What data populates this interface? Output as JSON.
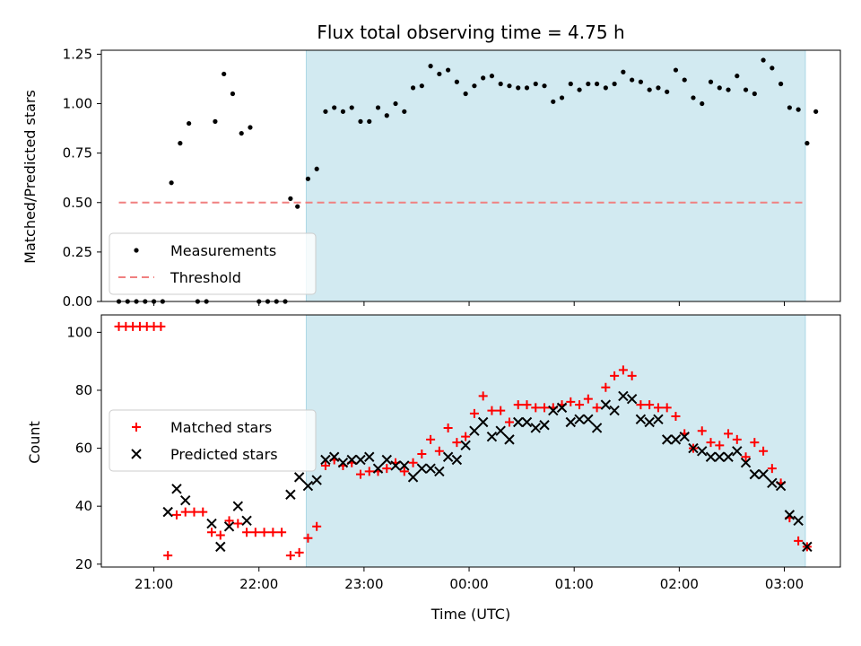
{
  "chart_data": [
    {
      "type": "scatter",
      "title": "Flux total observing time = 4.75 h",
      "ylabel": "Matched/Predicted stars",
      "xlabel": "",
      "x_unit": "hours (UTC)",
      "xlim": [
        "20:30",
        "03:32"
      ],
      "ylim": [
        0,
        1.27
      ],
      "yticks": [
        "0.00",
        "0.25",
        "0.50",
        "0.75",
        "1.00",
        "1.25"
      ],
      "xticks": [
        "21:00",
        "22:00",
        "23:00",
        "00:00",
        "01:00",
        "02:00",
        "03:00"
      ],
      "shaded_interval": [
        "22:27",
        "03:12"
      ],
      "legend_position": "lower-left",
      "series": [
        {
          "name": "Measurements",
          "marker": "dot",
          "color": "#000000",
          "points": [
            [
              "20:40",
              0.0
            ],
            [
              "20:45",
              0.0
            ],
            [
              "20:50",
              0.0
            ],
            [
              "20:55",
              0.0
            ],
            [
              "21:00",
              0.0
            ],
            [
              "21:05",
              0.0
            ],
            [
              "21:10",
              0.6
            ],
            [
              "21:15",
              0.8
            ],
            [
              "21:20",
              0.9
            ],
            [
              "21:25",
              0.0
            ],
            [
              "21:30",
              0.0
            ],
            [
              "21:35",
              0.91
            ],
            [
              "21:40",
              1.15
            ],
            [
              "21:45",
              1.05
            ],
            [
              "21:50",
              0.85
            ],
            [
              "21:55",
              0.88
            ],
            [
              "22:00",
              0.0
            ],
            [
              "22:05",
              0.0
            ],
            [
              "22:10",
              0.0
            ],
            [
              "22:15",
              0.0
            ],
            [
              "22:18",
              0.52
            ],
            [
              "22:22",
              0.48
            ],
            [
              "22:28",
              0.62
            ],
            [
              "22:33",
              0.67
            ],
            [
              "22:38",
              0.96
            ],
            [
              "22:43",
              0.98
            ],
            [
              "22:48",
              0.96
            ],
            [
              "22:53",
              0.98
            ],
            [
              "22:58",
              0.91
            ],
            [
              "23:03",
              0.91
            ],
            [
              "23:08",
              0.98
            ],
            [
              "23:13",
              0.94
            ],
            [
              "23:18",
              1.0
            ],
            [
              "23:23",
              0.96
            ],
            [
              "23:28",
              1.08
            ],
            [
              "23:33",
              1.09
            ],
            [
              "23:38",
              1.19
            ],
            [
              "23:43",
              1.15
            ],
            [
              "23:48",
              1.17
            ],
            [
              "23:53",
              1.11
            ],
            [
              "23:58",
              1.05
            ],
            [
              "00:03",
              1.09
            ],
            [
              "00:08",
              1.13
            ],
            [
              "00:13",
              1.14
            ],
            [
              "00:18",
              1.1
            ],
            [
              "00:23",
              1.09
            ],
            [
              "00:28",
              1.08
            ],
            [
              "00:33",
              1.08
            ],
            [
              "00:38",
              1.1
            ],
            [
              "00:43",
              1.09
            ],
            [
              "00:48",
              1.01
            ],
            [
              "00:53",
              1.03
            ],
            [
              "00:58",
              1.1
            ],
            [
              "01:03",
              1.07
            ],
            [
              "01:08",
              1.1
            ],
            [
              "01:13",
              1.1
            ],
            [
              "01:18",
              1.08
            ],
            [
              "01:23",
              1.1
            ],
            [
              "01:28",
              1.16
            ],
            [
              "01:33",
              1.12
            ],
            [
              "01:38",
              1.11
            ],
            [
              "01:43",
              1.07
            ],
            [
              "01:48",
              1.08
            ],
            [
              "01:53",
              1.06
            ],
            [
              "01:58",
              1.17
            ],
            [
              "02:03",
              1.12
            ],
            [
              "02:08",
              1.03
            ],
            [
              "02:13",
              1.0
            ],
            [
              "02:18",
              1.11
            ],
            [
              "02:23",
              1.08
            ],
            [
              "02:28",
              1.07
            ],
            [
              "02:33",
              1.14
            ],
            [
              "02:38",
              1.07
            ],
            [
              "02:43",
              1.05
            ],
            [
              "02:48",
              1.22
            ],
            [
              "02:53",
              1.18
            ],
            [
              "02:58",
              1.1
            ],
            [
              "03:03",
              0.98
            ],
            [
              "03:08",
              0.97
            ],
            [
              "03:13",
              0.8
            ],
            [
              "03:18",
              0.96
            ]
          ]
        },
        {
          "name": "Threshold",
          "marker": "dashed-line",
          "color": "#f08080",
          "points": [
            [
              "20:40",
              0.5
            ],
            [
              "03:12",
              0.5
            ]
          ]
        }
      ]
    },
    {
      "type": "scatter",
      "title": "",
      "ylabel": "Count",
      "xlabel": "Time (UTC)",
      "xlim": [
        "20:30",
        "03:32"
      ],
      "ylim": [
        19,
        106
      ],
      "yticks": [
        "20",
        "40",
        "60",
        "80",
        "100"
      ],
      "xticks": [
        "21:00",
        "22:00",
        "23:00",
        "00:00",
        "01:00",
        "02:00",
        "03:00"
      ],
      "shaded_interval": [
        "22:27",
        "03:12"
      ],
      "legend_position": "center-left",
      "series": [
        {
          "name": "Matched stars",
          "marker": "plus",
          "color": "#ff0000",
          "points": [
            [
              "20:40",
              102
            ],
            [
              "20:44",
              102
            ],
            [
              "20:48",
              102
            ],
            [
              "20:52",
              102
            ],
            [
              "20:56",
              102
            ],
            [
              "21:00",
              102
            ],
            [
              "21:04",
              102
            ],
            [
              "21:08",
              23
            ],
            [
              "21:13",
              37
            ],
            [
              "21:18",
              38
            ],
            [
              "21:23",
              38
            ],
            [
              "21:28",
              38
            ],
            [
              "21:33",
              31
            ],
            [
              "21:38",
              30
            ],
            [
              "21:43",
              35
            ],
            [
              "21:48",
              34
            ],
            [
              "21:53",
              31
            ],
            [
              "21:58",
              31
            ],
            [
              "22:03",
              31
            ],
            [
              "22:08",
              31
            ],
            [
              "22:13",
              31
            ],
            [
              "22:18",
              23
            ],
            [
              "22:23",
              24
            ],
            [
              "22:28",
              29
            ],
            [
              "22:33",
              33
            ],
            [
              "22:38",
              54
            ],
            [
              "22:43",
              56
            ],
            [
              "22:48",
              54
            ],
            [
              "22:53",
              55
            ],
            [
              "22:58",
              51
            ],
            [
              "23:03",
              52
            ],
            [
              "23:08",
              52
            ],
            [
              "23:13",
              53
            ],
            [
              "23:18",
              55
            ],
            [
              "23:23",
              52
            ],
            [
              "23:28",
              55
            ],
            [
              "23:33",
              58
            ],
            [
              "23:38",
              63
            ],
            [
              "23:43",
              59
            ],
            [
              "23:48",
              67
            ],
            [
              "23:53",
              62
            ],
            [
              "23:58",
              64
            ],
            [
              "00:03",
              72
            ],
            [
              "00:08",
              78
            ],
            [
              "00:13",
              73
            ],
            [
              "00:18",
              73
            ],
            [
              "00:23",
              69
            ],
            [
              "00:28",
              75
            ],
            [
              "00:33",
              75
            ],
            [
              "00:38",
              74
            ],
            [
              "00:43",
              74
            ],
            [
              "00:48",
              74
            ],
            [
              "00:53",
              75
            ],
            [
              "00:58",
              76
            ],
            [
              "01:03",
              75
            ],
            [
              "01:08",
              77
            ],
            [
              "01:13",
              74
            ],
            [
              "01:18",
              81
            ],
            [
              "01:23",
              85
            ],
            [
              "01:28",
              87
            ],
            [
              "01:33",
              85
            ],
            [
              "01:38",
              75
            ],
            [
              "01:43",
              75
            ],
            [
              "01:48",
              74
            ],
            [
              "01:53",
              74
            ],
            [
              "01:58",
              71
            ],
            [
              "02:03",
              65
            ],
            [
              "02:08",
              60
            ],
            [
              "02:13",
              66
            ],
            [
              "02:18",
              62
            ],
            [
              "02:23",
              61
            ],
            [
              "02:28",
              65
            ],
            [
              "02:33",
              63
            ],
            [
              "02:38",
              57
            ],
            [
              "02:43",
              62
            ],
            [
              "02:48",
              59
            ],
            [
              "02:53",
              53
            ],
            [
              "02:58",
              48
            ],
            [
              "03:03",
              36
            ],
            [
              "03:08",
              28
            ],
            [
              "03:13",
              26
            ]
          ]
        },
        {
          "name": "Predicted stars",
          "marker": "x",
          "color": "#000000",
          "points": [
            [
              "21:08",
              38
            ],
            [
              "21:13",
              46
            ],
            [
              "21:18",
              42
            ],
            [
              "21:33",
              34
            ],
            [
              "21:38",
              26
            ],
            [
              "21:43",
              33
            ],
            [
              "21:48",
              40
            ],
            [
              "21:53",
              35
            ],
            [
              "22:18",
              44
            ],
            [
              "22:23",
              50
            ],
            [
              "22:28",
              47
            ],
            [
              "22:33",
              49
            ],
            [
              "22:38",
              56
            ],
            [
              "22:43",
              57
            ],
            [
              "22:48",
              55
            ],
            [
              "22:53",
              56
            ],
            [
              "22:58",
              56
            ],
            [
              "23:03",
              57
            ],
            [
              "23:08",
              53
            ],
            [
              "23:13",
              56
            ],
            [
              "23:18",
              54
            ],
            [
              "23:23",
              54
            ],
            [
              "23:28",
              50
            ],
            [
              "23:33",
              53
            ],
            [
              "23:38",
              53
            ],
            [
              "23:43",
              52
            ],
            [
              "23:48",
              57
            ],
            [
              "23:53",
              56
            ],
            [
              "23:58",
              61
            ],
            [
              "00:03",
              66
            ],
            [
              "00:08",
              69
            ],
            [
              "00:13",
              64
            ],
            [
              "00:18",
              66
            ],
            [
              "00:23",
              63
            ],
            [
              "00:28",
              69
            ],
            [
              "00:33",
              69
            ],
            [
              "00:38",
              67
            ],
            [
              "00:43",
              68
            ],
            [
              "00:48",
              73
            ],
            [
              "00:53",
              74
            ],
            [
              "00:58",
              69
            ],
            [
              "01:03",
              70
            ],
            [
              "01:08",
              70
            ],
            [
              "01:13",
              67
            ],
            [
              "01:18",
              75
            ],
            [
              "01:23",
              73
            ],
            [
              "01:28",
              78
            ],
            [
              "01:33",
              77
            ],
            [
              "01:38",
              70
            ],
            [
              "01:43",
              69
            ],
            [
              "01:48",
              70
            ],
            [
              "01:53",
              63
            ],
            [
              "01:58",
              63
            ],
            [
              "02:03",
              64
            ],
            [
              "02:08",
              60
            ],
            [
              "02:13",
              59
            ],
            [
              "02:18",
              57
            ],
            [
              "02:23",
              57
            ],
            [
              "02:28",
              57
            ],
            [
              "02:33",
              59
            ],
            [
              "02:38",
              55
            ],
            [
              "02:43",
              51
            ],
            [
              "02:48",
              51
            ],
            [
              "02:53",
              48
            ],
            [
              "02:58",
              47
            ],
            [
              "03:03",
              37
            ],
            [
              "03:08",
              35
            ],
            [
              "03:13",
              26
            ]
          ]
        }
      ]
    }
  ]
}
